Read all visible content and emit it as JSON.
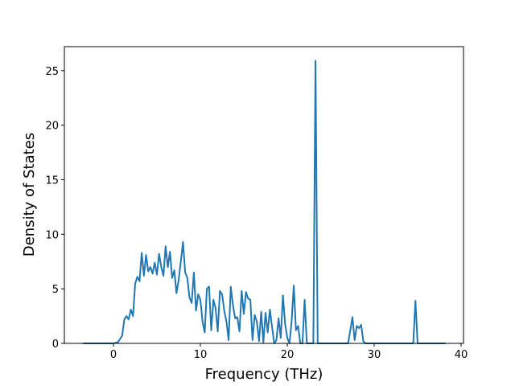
{
  "chart_data": {
    "type": "line",
    "xlabel": "Frequency (THz)",
    "ylabel": "Density of States",
    "color": "#1f77b4",
    "x": [
      -3.5,
      0,
      0.5,
      1.0,
      1.25,
      1.5,
      1.75,
      2.0,
      2.25,
      2.5,
      2.75,
      3.0,
      3.25,
      3.5,
      3.75,
      4.0,
      4.25,
      4.5,
      4.75,
      5.0,
      5.25,
      5.5,
      5.75,
      6.0,
      6.25,
      6.5,
      6.75,
      7.0,
      7.25,
      7.5,
      7.75,
      8.0,
      8.25,
      8.5,
      8.75,
      9.0,
      9.25,
      9.5,
      9.75,
      10.0,
      10.25,
      10.5,
      10.75,
      11.0,
      11.25,
      11.5,
      11.75,
      12.0,
      12.25,
      12.5,
      12.75,
      13.0,
      13.25,
      13.5,
      13.75,
      14.0,
      14.25,
      14.5,
      14.75,
      15.0,
      15.25,
      15.5,
      15.75,
      16.0,
      16.25,
      16.5,
      16.75,
      17.0,
      17.25,
      17.5,
      17.75,
      18.0,
      18.25,
      18.5,
      18.75,
      19.0,
      19.25,
      19.5,
      19.75,
      20.0,
      20.25,
      20.5,
      20.75,
      21.0,
      21.25,
      21.5,
      21.75,
      22.0,
      22.25,
      23.0,
      23.25,
      23.5,
      27.0,
      27.5,
      27.75,
      28.0,
      28.25,
      28.5,
      28.75,
      29.0,
      34.5,
      34.75,
      35.0,
      38.2
    ],
    "values": [
      0,
      0,
      0.1,
      0.7,
      2.2,
      2.5,
      2.2,
      3.1,
      2.5,
      5.5,
      6.1,
      5.7,
      8.3,
      6.2,
      8.1,
      6.6,
      7.0,
      6.4,
      7.4,
      6.3,
      8.2,
      7.0,
      6.2,
      8.9,
      7.0,
      8.4,
      6.0,
      6.7,
      4.6,
      5.8,
      7.5,
      9.3,
      6.5,
      6.0,
      4.2,
      3.7,
      6.5,
      3.0,
      4.5,
      4.0,
      2.0,
      1.0,
      5.0,
      5.2,
      1.2,
      4.0,
      3.2,
      1.1,
      4.8,
      4.5,
      3.0,
      2.0,
      0.3,
      5.2,
      3.5,
      2.3,
      2.4,
      1.1,
      4.8,
      2.7,
      4.7,
      4.1,
      4.0,
      0.3,
      2.6,
      2.0,
      0.2,
      2.9,
      0.1,
      2.8,
      1.0,
      3.1,
      1.5,
      0,
      0.3,
      2.3,
      0.5,
      4.4,
      1.8,
      0.5,
      0,
      2.0,
      5.3,
      1.2,
      1.6,
      0,
      0,
      4.0,
      0,
      0,
      25.9,
      0,
      0,
      2.4,
      0.3,
      1.6,
      1.4,
      1.7,
      0.2,
      0,
      0,
      3.9,
      0,
      0
    ],
    "xlim": [
      -5.65,
      40.28
    ],
    "ylim": [
      0,
      27.2
    ],
    "xticks": [
      0,
      10,
      20,
      30,
      40
    ],
    "yticks": [
      0,
      5,
      10,
      15,
      20,
      25
    ]
  }
}
